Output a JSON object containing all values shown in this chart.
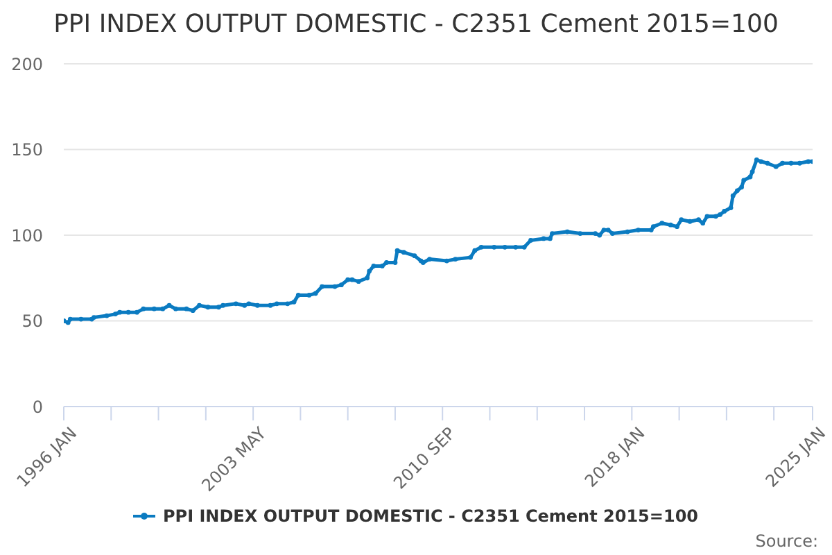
{
  "chart_data": {
    "type": "line",
    "title": "PPI INDEX OUTPUT DOMESTIC - C2351 Cement 2015=100",
    "x": [
      "1996-01",
      "1996-03",
      "1996-04",
      "1996-09",
      "1997-02",
      "1997-03",
      "1997-09",
      "1998-01",
      "1998-03",
      "1998-07",
      "1998-11",
      "1999-02",
      "1999-07",
      "1999-11",
      "2000-02",
      "2000-05",
      "2000-10",
      "2001-01",
      "2001-04",
      "2001-08",
      "2002-01",
      "2002-03",
      "2002-09",
      "2003-01",
      "2003-03",
      "2003-07",
      "2004-01",
      "2004-04",
      "2004-09",
      "2004-12",
      "2005-02",
      "2005-07",
      "2005-10",
      "2006-01",
      "2006-07",
      "2006-10",
      "2007-01",
      "2007-03",
      "2007-06",
      "2007-10",
      "2007-11",
      "2008-01",
      "2008-05",
      "2008-07",
      "2008-11",
      "2008-12",
      "2009-03",
      "2009-08",
      "2009-11",
      "2009-12",
      "2010-03",
      "2010-11",
      "2011-03",
      "2011-10",
      "2011-12",
      "2012-03",
      "2012-09",
      "2013-02",
      "2013-07",
      "2013-11",
      "2014-02",
      "2014-08",
      "2014-11",
      "2014-12",
      "2015-07",
      "2016-01",
      "2016-08",
      "2016-10",
      "2016-12",
      "2017-02",
      "2017-04",
      "2017-11",
      "2018-04",
      "2018-10",
      "2018-11",
      "2019-03",
      "2019-07",
      "2019-10",
      "2019-12",
      "2020-04",
      "2020-08",
      "2020-10",
      "2020-12",
      "2021-04",
      "2021-06",
      "2021-08",
      "2021-11",
      "2021-12",
      "2022-02",
      "2022-04",
      "2022-05",
      "2022-08",
      "2022-09",
      "2022-11",
      "2023-01",
      "2023-04",
      "2023-08",
      "2023-11",
      "2024-03",
      "2024-07",
      "2024-11",
      "2025-01"
    ],
    "series": [
      {
        "name": "PPI INDEX OUTPUT DOMESTIC - C2351 Cement 2015=100",
        "color": "#0b7bc1",
        "values": [
          50,
          49,
          51,
          51,
          51,
          52,
          53,
          54,
          55,
          55,
          55,
          57,
          57,
          57,
          59,
          57,
          57,
          56,
          59,
          58,
          58,
          59,
          60,
          59,
          60,
          59,
          59,
          60,
          60,
          61,
          65,
          65,
          66,
          70,
          70,
          71,
          74,
          74,
          73,
          75,
          79,
          82,
          82,
          84,
          84,
          91,
          90,
          88,
          85,
          84,
          86,
          85,
          86,
          87,
          91,
          93,
          93,
          93,
          93,
          93,
          97,
          98,
          98,
          101,
          102,
          101,
          101,
          100,
          103,
          103,
          101,
          102,
          103,
          103,
          105,
          107,
          106,
          105,
          109,
          108,
          109,
          107,
          111,
          111,
          112,
          114,
          116,
          123,
          126,
          128,
          132,
          134,
          137,
          144,
          143,
          142,
          140,
          142,
          142,
          142,
          143,
          143
        ]
      }
    ],
    "xlim": [
      "1996-01",
      "2025-01"
    ],
    "xticks": [
      {
        "value": "1996-01",
        "label": "1996 JAN"
      },
      {
        "value": "1997-11",
        "label": null
      },
      {
        "value": "1999-09",
        "label": null
      },
      {
        "value": "2001-07",
        "label": null
      },
      {
        "value": "2003-05",
        "label": "2003 MAY"
      },
      {
        "value": "2005-03",
        "label": null
      },
      {
        "value": "2007-01",
        "label": null
      },
      {
        "value": "2008-11",
        "label": null
      },
      {
        "value": "2010-09",
        "label": "2010 SEP"
      },
      {
        "value": "2012-07",
        "label": null
      },
      {
        "value": "2014-05",
        "label": null
      },
      {
        "value": "2016-03",
        "label": null
      },
      {
        "value": "2018-01",
        "label": "2018 JAN"
      },
      {
        "value": "2019-11",
        "label": null
      },
      {
        "value": "2021-09",
        "label": null
      },
      {
        "value": "2023-07",
        "label": null
      },
      {
        "value": "2025-01",
        "label": "2025 JAN"
      }
    ],
    "ylim": [
      0,
      200
    ],
    "yticks": [
      0,
      50,
      100,
      150,
      200
    ],
    "grid": "y",
    "legend": "bottom",
    "marker": "circle",
    "annotations": [
      "Source:"
    ]
  }
}
